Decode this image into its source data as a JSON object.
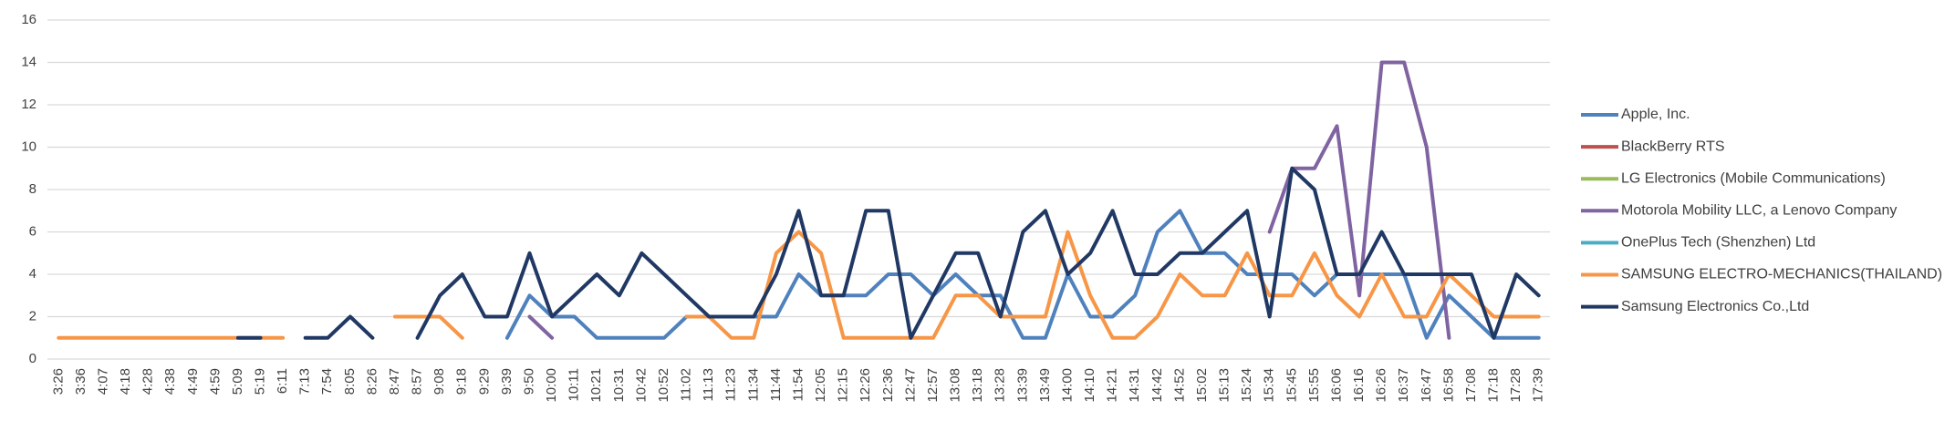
{
  "chart_data": {
    "type": "line",
    "categories": [
      "3:26",
      "3:36",
      "4:07",
      "4:18",
      "4:28",
      "4:38",
      "4:49",
      "4:59",
      "5:09",
      "5:19",
      "6:11",
      "7:13",
      "7:54",
      "8:05",
      "8:26",
      "8:47",
      "8:57",
      "9:08",
      "9:18",
      "9:29",
      "9:39",
      "9:50",
      "10:00",
      "10:11",
      "10:21",
      "10:31",
      "10:42",
      "10:52",
      "11:02",
      "11:13",
      "11:23",
      "11:34",
      "11:44",
      "11:54",
      "12:05",
      "12:15",
      "12:26",
      "12:36",
      "12:47",
      "12:57",
      "13:08",
      "13:18",
      "13:28",
      "13:39",
      "13:49",
      "14:00",
      "14:10",
      "14:21",
      "14:31",
      "14:42",
      "14:52",
      "15:02",
      "15:13",
      "15:24",
      "15:34",
      "15:45",
      "15:55",
      "16:06",
      "16:16",
      "16:26",
      "16:37",
      "16:47",
      "16:58",
      "17:08",
      "17:18",
      "17:28",
      "17:39"
    ],
    "series": [
      {
        "name": "Apple, Inc.",
        "color": "#4f81bd",
        "values": [
          null,
          null,
          null,
          null,
          null,
          null,
          null,
          null,
          null,
          null,
          null,
          null,
          null,
          null,
          null,
          null,
          null,
          null,
          null,
          null,
          1,
          3,
          2,
          2,
          1,
          1,
          1,
          1,
          2,
          2,
          2,
          2,
          2,
          4,
          3,
          3,
          3,
          4,
          4,
          3,
          4,
          3,
          3,
          1,
          1,
          4,
          2,
          2,
          3,
          6,
          7,
          5,
          5,
          4,
          4,
          4,
          3,
          4,
          4,
          4,
          4,
          1,
          3,
          2,
          1,
          1,
          1
        ]
      },
      {
        "name": "BlackBerry RTS",
        "color": "#c0504d",
        "values": [
          null,
          null,
          null,
          null,
          null,
          null,
          null,
          null,
          null,
          null,
          null,
          null,
          null,
          null,
          null,
          null,
          null,
          null,
          null,
          null,
          null,
          null,
          null,
          null,
          null,
          null,
          null,
          null,
          null,
          null,
          null,
          null,
          null,
          null,
          null,
          null,
          null,
          null,
          null,
          null,
          null,
          null,
          null,
          null,
          null,
          null,
          null,
          null,
          null,
          null,
          null,
          null,
          null,
          null,
          null,
          null,
          null,
          null,
          null,
          null,
          null,
          null,
          null,
          null,
          null,
          null,
          null
        ]
      },
      {
        "name": "LG Electronics (Mobile Communications)",
        "color": "#9bbb59",
        "values": [
          null,
          null,
          null,
          null,
          null,
          null,
          null,
          null,
          null,
          null,
          null,
          null,
          null,
          null,
          null,
          null,
          null,
          null,
          null,
          null,
          null,
          null,
          null,
          null,
          null,
          null,
          null,
          null,
          null,
          null,
          null,
          null,
          null,
          null,
          null,
          null,
          null,
          null,
          null,
          null,
          null,
          null,
          null,
          null,
          null,
          null,
          null,
          null,
          null,
          null,
          null,
          null,
          null,
          null,
          null,
          null,
          null,
          null,
          null,
          null,
          null,
          null,
          null,
          null,
          null,
          null,
          null
        ]
      },
      {
        "name": "Motorola Mobility LLC, a Lenovo Company",
        "color": "#8064a2",
        "values": [
          null,
          null,
          null,
          null,
          null,
          null,
          null,
          null,
          null,
          null,
          null,
          null,
          null,
          null,
          null,
          null,
          null,
          null,
          null,
          null,
          null,
          2,
          1,
          null,
          null,
          null,
          null,
          null,
          null,
          null,
          null,
          null,
          null,
          null,
          null,
          null,
          null,
          null,
          null,
          null,
          null,
          null,
          null,
          null,
          null,
          null,
          null,
          null,
          null,
          null,
          null,
          null,
          null,
          null,
          6,
          9,
          9,
          11,
          3,
          14,
          14,
          10,
          1,
          null,
          null,
          null,
          null
        ]
      },
      {
        "name": "OnePlus Tech (Shenzhen) Ltd",
        "color": "#4bacc6",
        "values": [
          null,
          null,
          null,
          null,
          null,
          null,
          null,
          null,
          null,
          null,
          null,
          null,
          null,
          null,
          null,
          null,
          null,
          null,
          null,
          null,
          null,
          null,
          null,
          null,
          null,
          null,
          null,
          null,
          null,
          null,
          null,
          null,
          null,
          null,
          null,
          null,
          null,
          null,
          null,
          null,
          null,
          null,
          null,
          null,
          null,
          null,
          null,
          null,
          null,
          null,
          null,
          null,
          null,
          null,
          null,
          null,
          null,
          null,
          null,
          null,
          null,
          null,
          null,
          null,
          null,
          null,
          null
        ]
      },
      {
        "name": "SAMSUNG ELECTRO-MECHANICS(THAILAND)",
        "color": "#f79646",
        "values": [
          1,
          1,
          1,
          1,
          1,
          1,
          1,
          1,
          1,
          1,
          1,
          null,
          null,
          null,
          null,
          2,
          2,
          2,
          1,
          null,
          null,
          null,
          null,
          null,
          null,
          null,
          null,
          null,
          2,
          2,
          1,
          1,
          5,
          6,
          5,
          1,
          1,
          1,
          1,
          1,
          3,
          3,
          2,
          2,
          2,
          6,
          3,
          1,
          1,
          2,
          4,
          3,
          3,
          5,
          3,
          3,
          5,
          3,
          2,
          4,
          2,
          2,
          4,
          3,
          2,
          2,
          2
        ]
      },
      {
        "name": "Samsung Electronics Co.,Ltd",
        "color": "#203864",
        "values": [
          null,
          null,
          null,
          null,
          null,
          null,
          null,
          null,
          1,
          1,
          null,
          1,
          1,
          2,
          1,
          null,
          1,
          3,
          4,
          2,
          2,
          5,
          2,
          3,
          4,
          3,
          5,
          4,
          3,
          2,
          2,
          2,
          4,
          7,
          3,
          3,
          7,
          7,
          1,
          3,
          5,
          5,
          2,
          6,
          7,
          4,
          5,
          7,
          4,
          4,
          5,
          5,
          6,
          7,
          2,
          9,
          8,
          4,
          4,
          6,
          4,
          4,
          4,
          4,
          1,
          4,
          3
        ]
      }
    ],
    "ylim": [
      0,
      16
    ],
    "yticks": [
      0,
      2,
      4,
      6,
      8,
      10,
      12,
      14,
      16
    ],
    "grid": true,
    "legend": "right"
  }
}
